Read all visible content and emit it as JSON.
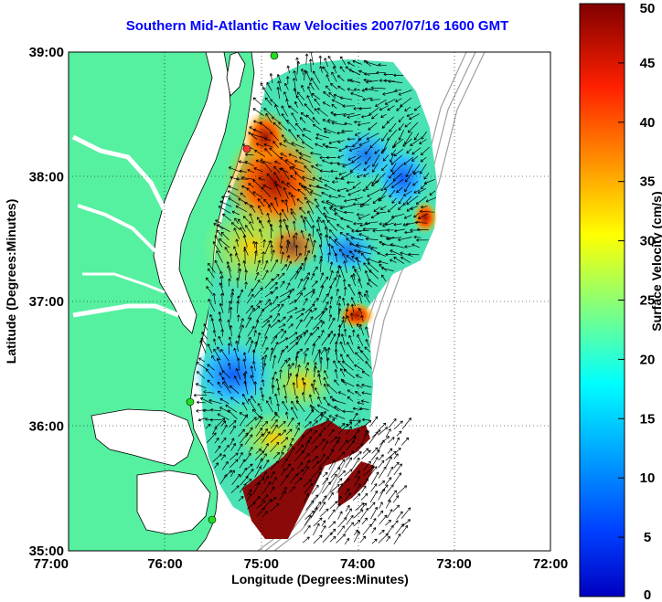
{
  "title": "Southern Mid-Atlantic Raw Velocities 2007/07/16 1600 GMT",
  "chart_data": {
    "type": "vector-field-map",
    "title": "Southern Mid-Atlantic Raw Velocities 2007/07/16 1600 GMT",
    "xlabel": "Longitude (Degrees:Minutes)",
    "ylabel": "Latitude (Degrees:Minutes)",
    "colorbar_label": "Surface Velocity (cm/s)",
    "x_ticks": [
      "77:00",
      "76:00",
      "75:00",
      "74:00",
      "73:00",
      "72:00"
    ],
    "y_ticks": [
      "39:00",
      "38:00",
      "37:00",
      "36:00",
      "35:00"
    ],
    "colorbar_ticks": [
      "50",
      "45",
      "40",
      "35",
      "30",
      "25",
      "20",
      "15",
      "10",
      "5",
      "0"
    ],
    "xlim": [
      -77,
      -72
    ],
    "ylim": [
      35,
      39
    ],
    "clim": [
      0,
      50
    ],
    "grid": true,
    "colors": {
      "land": "#55f0a0",
      "coast": "#000000",
      "bathymetry": "#a0a0a0",
      "station": "#22dd22",
      "station_red": "#ff3333"
    }
  }
}
